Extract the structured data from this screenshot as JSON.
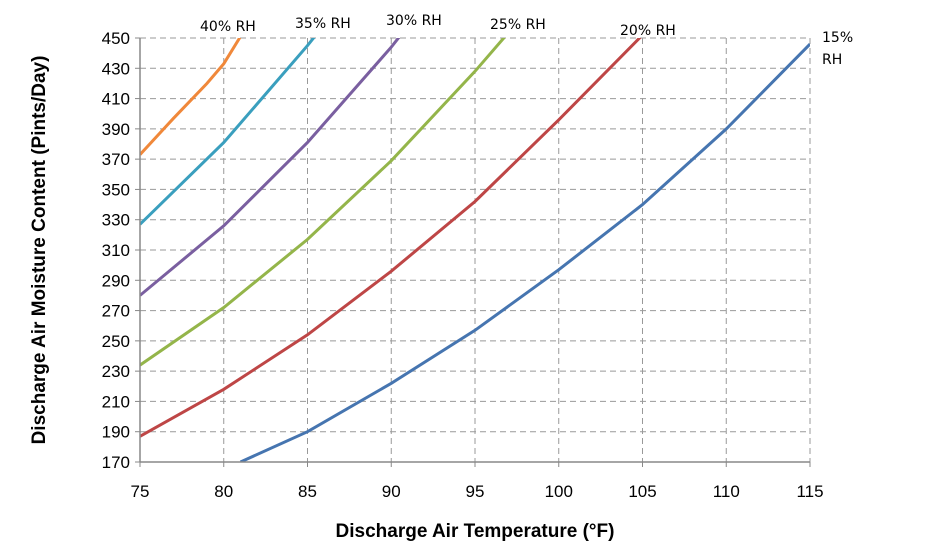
{
  "chart_data": {
    "type": "line",
    "xlabel": "Discharge Air Temperature (°F)",
    "ylabel": "Discharge Air Moisture Content (Pints/Day)",
    "xlim": [
      75,
      115
    ],
    "ylim": [
      170,
      450
    ],
    "xticks": [
      75,
      80,
      85,
      90,
      95,
      100,
      105,
      110,
      115
    ],
    "yticks": [
      170,
      190,
      210,
      230,
      250,
      270,
      290,
      310,
      330,
      350,
      370,
      390,
      410,
      430,
      450
    ],
    "grid": "dashed",
    "series": [
      {
        "name": "40% RH",
        "color": "#F0883A",
        "x": [
          75,
          77,
          79,
          80,
          81
        ],
        "y": [
          373,
          397,
          420,
          433,
          451
        ]
      },
      {
        "name": "35% RH",
        "color": "#3A9FBE",
        "x": [
          75,
          80,
          85,
          85.5
        ],
        "y": [
          327,
          381,
          445,
          452
        ]
      },
      {
        "name": "30% RH",
        "color": "#7A5FA0",
        "x": [
          75,
          80,
          85,
          90,
          90.5
        ],
        "y": [
          280,
          326,
          381,
          444,
          451
        ]
      },
      {
        "name": "25% RH",
        "color": "#94B54A",
        "x": [
          75,
          80,
          85,
          90,
          95,
          96.8
        ],
        "y": [
          234,
          272,
          317,
          369,
          428,
          451
        ]
      },
      {
        "name": "20% RH",
        "color": "#BE4646",
        "x": [
          75,
          80,
          85,
          90,
          95,
          100,
          105
        ],
        "y": [
          187,
          218,
          254,
          296,
          342,
          396,
          452
        ]
      },
      {
        "name": "15% RH",
        "color": "#4675B0",
        "x": [
          81,
          85,
          90,
          95,
          100,
          105,
          110,
          115
        ],
        "y": [
          170,
          190,
          222,
          257,
          297,
          340,
          390,
          446
        ]
      }
    ]
  }
}
